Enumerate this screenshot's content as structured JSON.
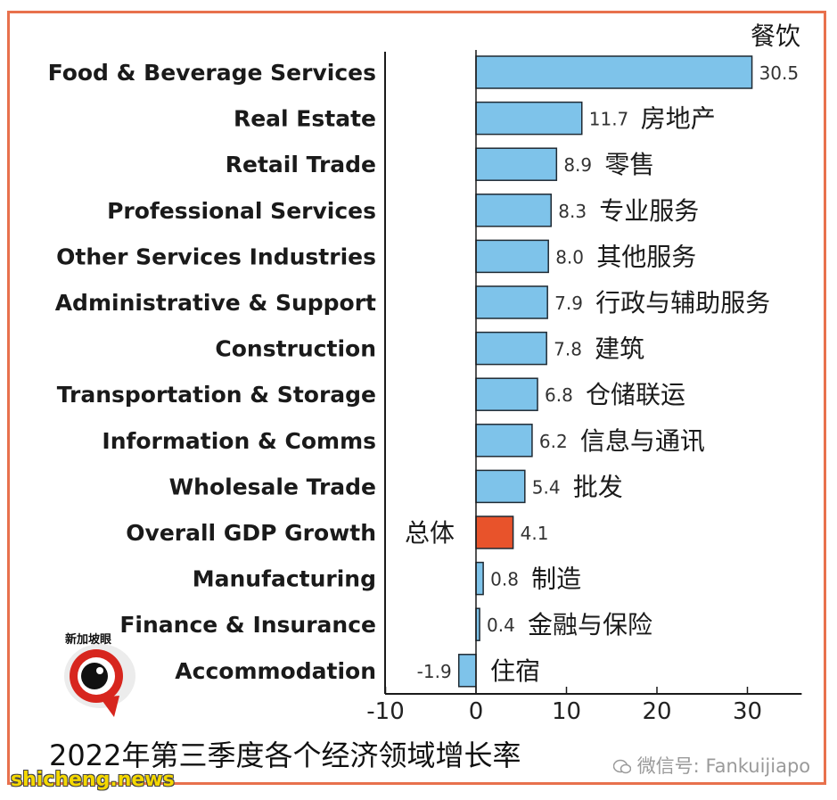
{
  "chart_data": {
    "type": "bar",
    "orientation": "horizontal",
    "title": "2022年第三季度各个经济领域增长率",
    "corner_label": "餐饮",
    "categories": [
      "Food & Beverage Services",
      "Real Estate",
      "Retail Trade",
      "Professional Services",
      "Other Services Industries",
      "Administrative & Support",
      "Construction",
      "Transportation & Storage",
      "Information & Comms",
      "Wholesale Trade",
      "Overall GDP Growth",
      "Manufacturing",
      "Finance & Insurance",
      "Accommodation"
    ],
    "values": [
      30.5,
      11.7,
      8.9,
      8.3,
      8.0,
      7.9,
      7.8,
      6.8,
      6.2,
      5.4,
      4.1,
      0.8,
      0.4,
      -1.9
    ],
    "value_labels": [
      "30.5",
      "11.7",
      "8.9",
      "8.3",
      "8.0",
      "7.9",
      "7.8",
      "6.8",
      "6.2",
      "5.4",
      "4.1",
      "0.8",
      "0.4",
      "-1.9"
    ],
    "chinese_labels": [
      "",
      "房地产",
      "零售",
      "专业服务",
      "其他服务",
      "行政与辅助服务",
      "建筑",
      "仓储联运",
      "信息与通讯",
      "批发",
      "总体",
      "制造",
      "金融与保险",
      "住宿"
    ],
    "highlight_index": 10,
    "xlim": [
      -10,
      36
    ],
    "xticks": [
      -10,
      0,
      10,
      20,
      30
    ],
    "bar_color": "#7ec3ea",
    "highlight_color": "#e8532b",
    "grid": false
  },
  "colors": {
    "frame": "#e8714d",
    "watermark": "#f5d800"
  },
  "logo": {
    "text": "新加坡眼",
    "icon": "eye-logo-icon"
  },
  "watermark": {
    "text": "shicheng.news"
  },
  "wechat": {
    "text": "微信号: Fankuijiapo",
    "icon": "wechat-icon"
  }
}
